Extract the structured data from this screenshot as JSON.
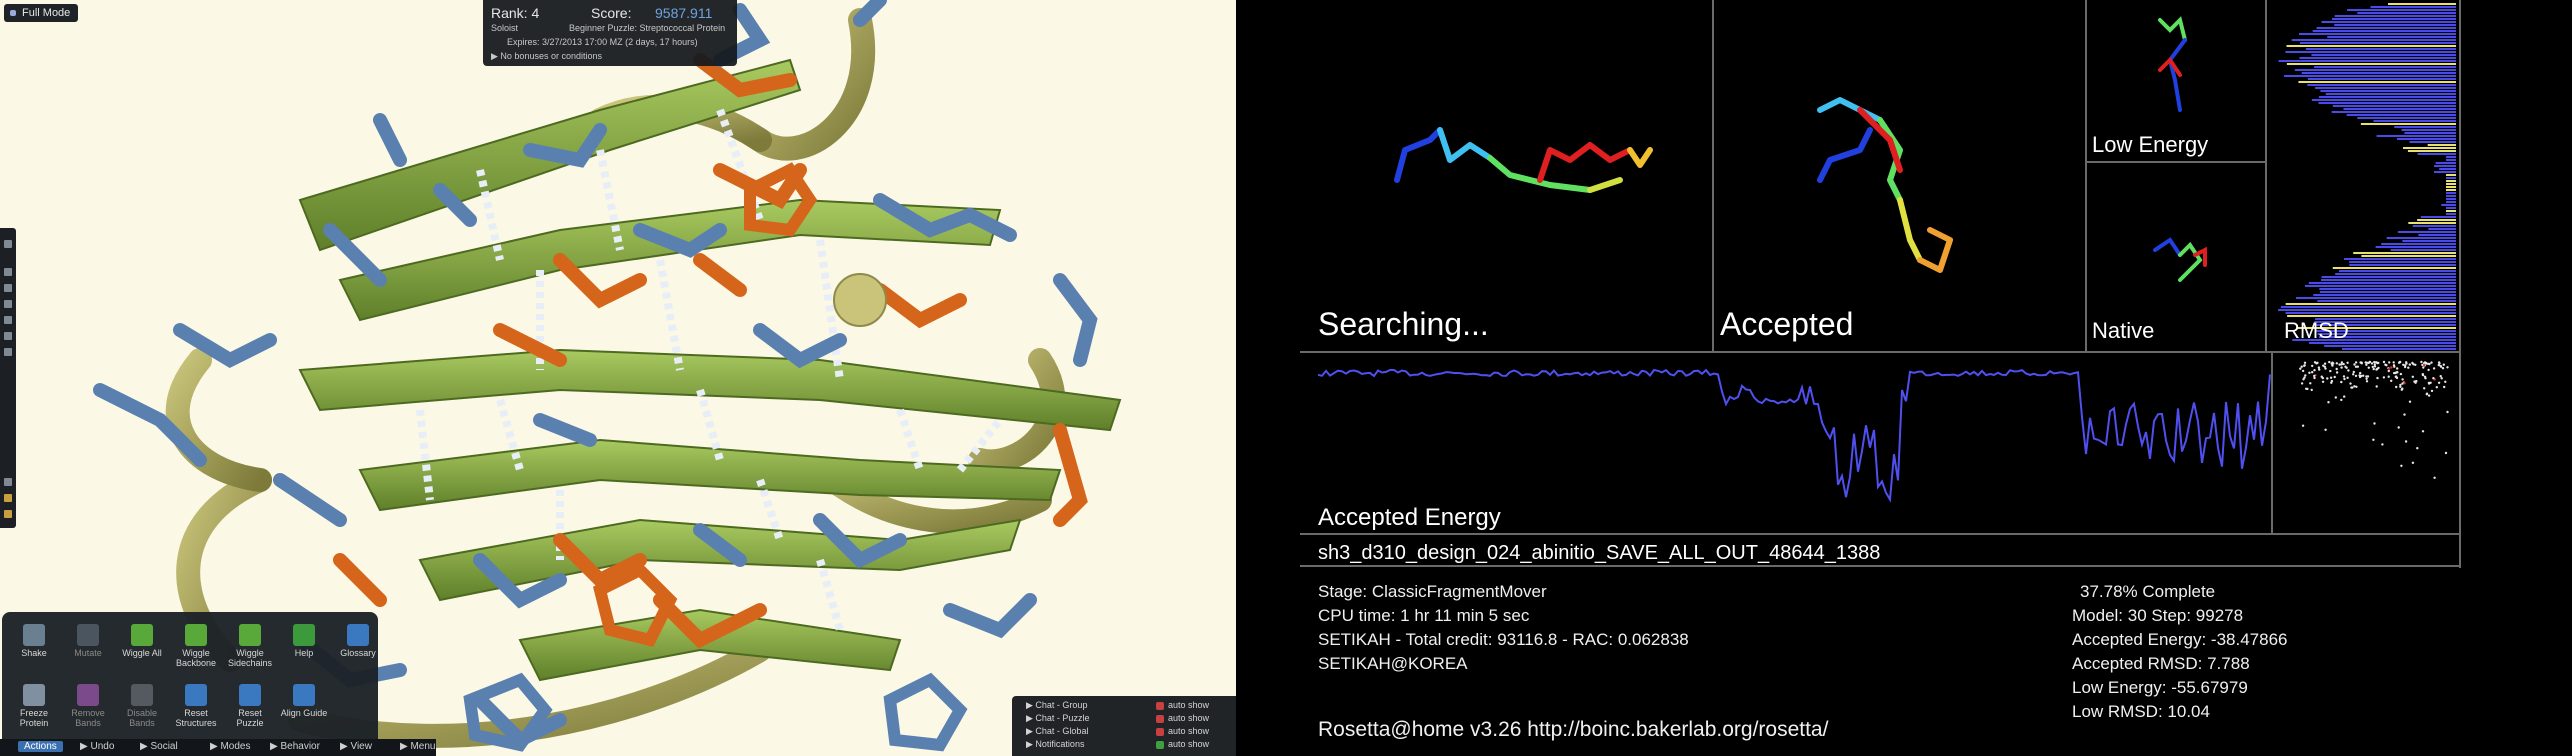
{
  "foldit": {
    "full_mode": "Full Mode",
    "rank_label": "Rank: 4",
    "score_label": "Score:",
    "score_value": "9587.911",
    "soloist": "Soloist",
    "puzzle": "Beginner Puzzle: Streptococcal Protein",
    "expires": "Expires: 3/27/2013 17:00 MZ (2 days, 17 hours)",
    "bonus": "▶  No bonuses or conditions",
    "actions": [
      {
        "label": "Shake",
        "color": "#6a7f90"
      },
      {
        "label": "Mutate",
        "color": "#4a5560",
        "dim": true
      },
      {
        "label": "Wiggle All",
        "color": "#58a83a"
      },
      {
        "label": "Wiggle Backbone",
        "color": "#58a83a"
      },
      {
        "label": "Wiggle Sidechains",
        "color": "#58a83a"
      },
      {
        "label": "Help",
        "color": "#3c9a3c"
      },
      {
        "label": "Glossary",
        "color": "#3a78c0"
      },
      {
        "label": "Freeze Protein",
        "color": "#8090a0"
      },
      {
        "label": "Remove Bands",
        "color": "#7a4a8a",
        "dim": true
      },
      {
        "label": "Disable Bands",
        "color": "#555a60",
        "dim": true
      },
      {
        "label": "Reset Structures",
        "color": "#3a78c0"
      },
      {
        "label": "Reset Puzzle",
        "color": "#3a78c0"
      },
      {
        "label": "Align Guide",
        "color": "#3a78c0"
      }
    ],
    "bottom_tabs": [
      "Actions",
      "▶  Undo",
      "▶  Social",
      "▶  Modes",
      "▶  Behavior",
      "▶  View",
      "▶  Menu"
    ],
    "chat_rows": [
      {
        "name": "▶  Chat - Group",
        "auto": "auto show",
        "color": "#c84040"
      },
      {
        "name": "▶  Chat - Puzzle",
        "auto": "auto show",
        "color": "#c84040"
      },
      {
        "name": "▶  Chat - Global",
        "auto": "auto show",
        "color": "#c84040"
      },
      {
        "name": "▶  Notifications",
        "auto": "auto show",
        "color": "#40a040"
      }
    ]
  },
  "rosetta": {
    "panel_searching": "Searching...",
    "panel_accepted": "Accepted",
    "panel_low_energy": "Low Energy",
    "panel_native": "Native",
    "panel_rmsd": "RMSD",
    "accepted_energy": "Accepted Energy",
    "filename": "sh3_d310_design_024_abinitio_SAVE_ALL_OUT_48644_1388",
    "stage": "Stage: ClassicFragmentMover",
    "cpu_time": "CPU time: 1 hr 11 min 5 sec",
    "credit": "SETIKAH - Total credit: 93116.8 - RAC: 0.062838",
    "user": "SETIKAH@KOREA",
    "version": "Rosetta@home v3.26 http://boinc.bakerlab.org/rosetta/",
    "complete": "37.78% Complete",
    "model_step": "Model: 30  Step: 99278",
    "accepted_energy_val": "Accepted Energy: -38.47866",
    "accepted_rmsd": "Accepted RMSD:  7.788",
    "low_energy": "Low Energy: -55.67979",
    "low_rmsd": "Low RMSD:  10.04"
  }
}
